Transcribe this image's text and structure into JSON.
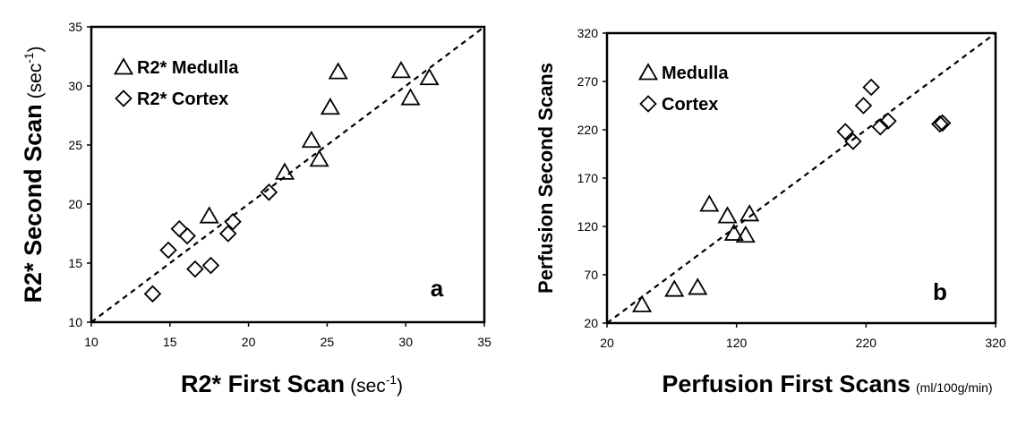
{
  "chart_data": [
    {
      "type": "scatter",
      "panel_label": "a",
      "xlabel": "R2* First Scan",
      "xlabel_unit": "sec",
      "xlabel_unit_sup": "-1",
      "ylabel": "R2* Second Scan",
      "ylabel_unit": "sec",
      "ylabel_unit_sup": "-1",
      "xlim": [
        10,
        35
      ],
      "ylim": [
        10,
        35
      ],
      "xticks": [
        10,
        15,
        20,
        25,
        30,
        35
      ],
      "yticks": [
        10,
        15,
        20,
        25,
        30,
        35
      ],
      "xtick_labels": [
        "10",
        "15",
        "20",
        "25",
        "30",
        "35"
      ],
      "ytick_labels": [
        "10",
        "15",
        "20",
        "25",
        "30",
        "35"
      ],
      "grid": false,
      "legend_position": "top-left",
      "reference_line": "identity",
      "series": [
        {
          "name": "R2* Medulla",
          "marker": "triangle",
          "points": [
            {
              "x": 17.5,
              "y": 19.0
            },
            {
              "x": 22.3,
              "y": 22.7
            },
            {
              "x": 24.0,
              "y": 25.4
            },
            {
              "x": 24.5,
              "y": 23.8
            },
            {
              "x": 25.2,
              "y": 28.2
            },
            {
              "x": 25.7,
              "y": 31.2
            },
            {
              "x": 29.7,
              "y": 31.3
            },
            {
              "x": 30.3,
              "y": 29.0
            },
            {
              "x": 31.5,
              "y": 30.7
            }
          ]
        },
        {
          "name": "R2* Cortex",
          "marker": "diamond",
          "points": [
            {
              "x": 13.9,
              "y": 12.4
            },
            {
              "x": 14.9,
              "y": 16.1
            },
            {
              "x": 15.6,
              "y": 17.9
            },
            {
              "x": 16.1,
              "y": 17.3
            },
            {
              "x": 16.6,
              "y": 14.5
            },
            {
              "x": 17.6,
              "y": 14.8
            },
            {
              "x": 18.7,
              "y": 17.5
            },
            {
              "x": 19.0,
              "y": 18.5
            },
            {
              "x": 21.3,
              "y": 21.0
            }
          ]
        }
      ]
    },
    {
      "type": "scatter",
      "panel_label": "b",
      "xlabel": "Perfusion First Scans",
      "xlabel_unit": "(ml/100g/min)",
      "ylabel": "Perfusion Second Scans",
      "xlim": [
        20,
        320
      ],
      "ylim": [
        20,
        320
      ],
      "xticks": [
        20,
        120,
        220,
        320
      ],
      "yticks": [
        20,
        70,
        120,
        170,
        220,
        270,
        320
      ],
      "xtick_labels": [
        "20",
        "120",
        "220",
        "320"
      ],
      "ytick_labels": [
        "20",
        "70",
        "120",
        "170",
        "220",
        "270",
        "320"
      ],
      "grid": false,
      "legend_position": "top-left",
      "reference_line": "identity",
      "series": [
        {
          "name": "Medulla",
          "marker": "triangle",
          "points": [
            {
              "x": 47,
              "y": 39
            },
            {
              "x": 72,
              "y": 55
            },
            {
              "x": 90,
              "y": 57
            },
            {
              "x": 99,
              "y": 143
            },
            {
              "x": 113,
              "y": 131
            },
            {
              "x": 118,
              "y": 113
            },
            {
              "x": 127,
              "y": 111
            },
            {
              "x": 130,
              "y": 133
            }
          ]
        },
        {
          "name": "Cortex",
          "marker": "diamond",
          "points": [
            {
              "x": 204,
              "y": 218
            },
            {
              "x": 210,
              "y": 208
            },
            {
              "x": 218,
              "y": 245
            },
            {
              "x": 224,
              "y": 264
            },
            {
              "x": 231,
              "y": 223
            },
            {
              "x": 237,
              "y": 229
            },
            {
              "x": 277,
              "y": 226
            },
            {
              "x": 279,
              "y": 227
            }
          ]
        }
      ]
    }
  ]
}
